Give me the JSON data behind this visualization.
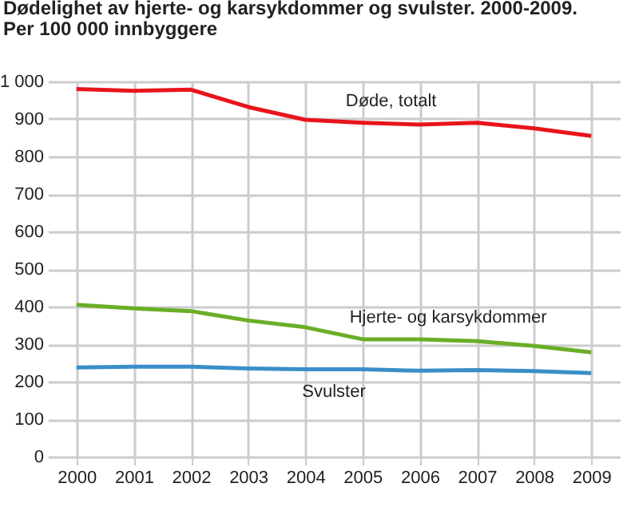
{
  "chart_data": {
    "type": "line",
    "title": "Dødelighet av hjerte- og karsykdommer og svulster. 2000-2009.",
    "subtitle": "Per 100 000 innbyggere",
    "categories": [
      "2000",
      "2001",
      "2002",
      "2003",
      "2004",
      "2005",
      "2006",
      "2007",
      "2008",
      "2009"
    ],
    "series": [
      {
        "name": "Døde, totalt",
        "color": "#e8141c",
        "values": [
          980,
          975,
          978,
          932,
          898,
          890,
          885,
          890,
          875,
          855
        ]
      },
      {
        "name": "Hjerte- og karsykdommer",
        "color": "#6aae27",
        "values": [
          405,
          395,
          388,
          363,
          345,
          313,
          313,
          308,
          295,
          278
        ]
      },
      {
        "name": "Svulster",
        "color": "#3a8ec8",
        "values": [
          238,
          240,
          240,
          235,
          233,
          233,
          229,
          231,
          228,
          223
        ]
      }
    ],
    "ylim": [
      0,
      1000
    ],
    "yticks": [
      0,
      100,
      200,
      300,
      400,
      500,
      600,
      700,
      800,
      900,
      {
        "value": 1000,
        "label": "1 000"
      }
    ],
    "grid": true,
    "legend": false,
    "marker": "none",
    "line_style": "solid"
  }
}
